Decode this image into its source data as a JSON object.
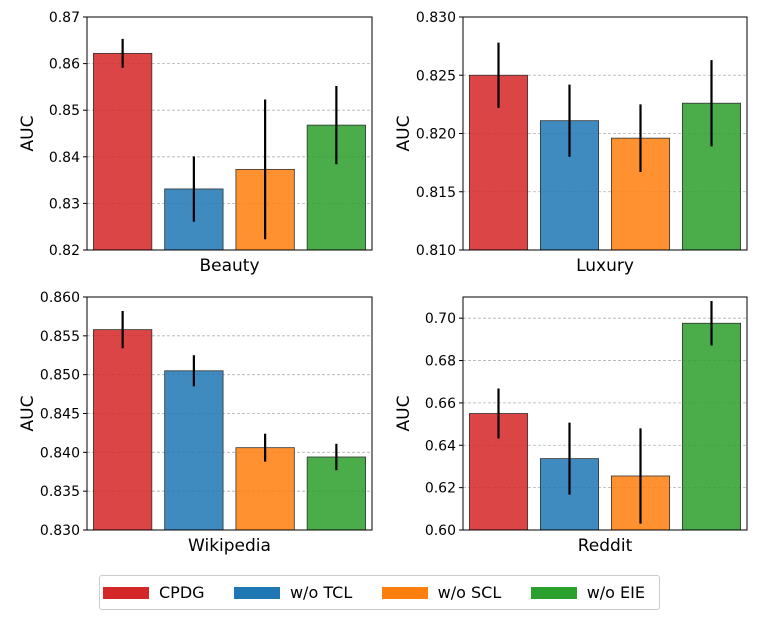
{
  "legend": [
    {
      "label": "CPDG",
      "color": "#d62728"
    },
    {
      "label": "w/o TCL",
      "color": "#1f77b4"
    },
    {
      "label": "w/o SCL",
      "color": "#ff7f0e"
    },
    {
      "label": "w/o EIE",
      "color": "#2ca02c"
    }
  ],
  "chart_data": [
    {
      "type": "bar",
      "xlabel": "Beauty",
      "ylabel": "AUC",
      "ylim": [
        0.82,
        0.87
      ],
      "yticks": [
        0.82,
        0.83,
        0.84,
        0.85,
        0.86,
        0.87
      ],
      "ytick_labels": [
        "0.82",
        "0.83",
        "0.84",
        "0.85",
        "0.86",
        "0.87"
      ],
      "grid": true,
      "categories": [
        "CPDG",
        "w/o TCL",
        "w/o SCL",
        "w/o EIE"
      ],
      "values": [
        0.8622,
        0.8331,
        0.8373,
        0.8468
      ],
      "errors": [
        0.0031,
        0.007,
        0.015,
        0.0084
      ]
    },
    {
      "type": "bar",
      "xlabel": "Luxury",
      "ylabel": "AUC",
      "ylim": [
        0.81,
        0.83
      ],
      "yticks": [
        0.81,
        0.815,
        0.82,
        0.825,
        0.83
      ],
      "ytick_labels": [
        "0.810",
        "0.815",
        "0.820",
        "0.825",
        "0.830"
      ],
      "grid": true,
      "categories": [
        "CPDG",
        "w/o TCL",
        "w/o SCL",
        "w/o EIE"
      ],
      "values": [
        0.825,
        0.8211,
        0.8196,
        0.8226
      ],
      "errors": [
        0.0028,
        0.0031,
        0.0029,
        0.0037
      ]
    },
    {
      "type": "bar",
      "xlabel": "Wikipedia",
      "ylabel": "AUC",
      "ylim": [
        0.83,
        0.86
      ],
      "yticks": [
        0.83,
        0.835,
        0.84,
        0.845,
        0.85,
        0.855,
        0.86
      ],
      "ytick_labels": [
        "0.830",
        "0.835",
        "0.840",
        "0.845",
        "0.850",
        "0.855",
        "0.860"
      ],
      "grid": true,
      "categories": [
        "CPDG",
        "w/o TCL",
        "w/o SCL",
        "w/o EIE"
      ],
      "values": [
        0.8558,
        0.8505,
        0.8406,
        0.8394
      ],
      "errors": [
        0.0024,
        0.002,
        0.0018,
        0.0017
      ]
    },
    {
      "type": "bar",
      "xlabel": "Reddit",
      "ylabel": "AUC",
      "ylim": [
        0.6,
        0.71
      ],
      "yticks": [
        0.6,
        0.62,
        0.64,
        0.66,
        0.68,
        0.7
      ],
      "ytick_labels": [
        "0.60",
        "0.62",
        "0.64",
        "0.66",
        "0.68",
        "0.70"
      ],
      "grid": true,
      "categories": [
        "CPDG",
        "w/o TCL",
        "w/o SCL",
        "w/o EIE"
      ],
      "values": [
        0.655,
        0.6337,
        0.6255,
        0.6976
      ],
      "errors": [
        0.0118,
        0.017,
        0.0225,
        0.0105
      ]
    }
  ]
}
